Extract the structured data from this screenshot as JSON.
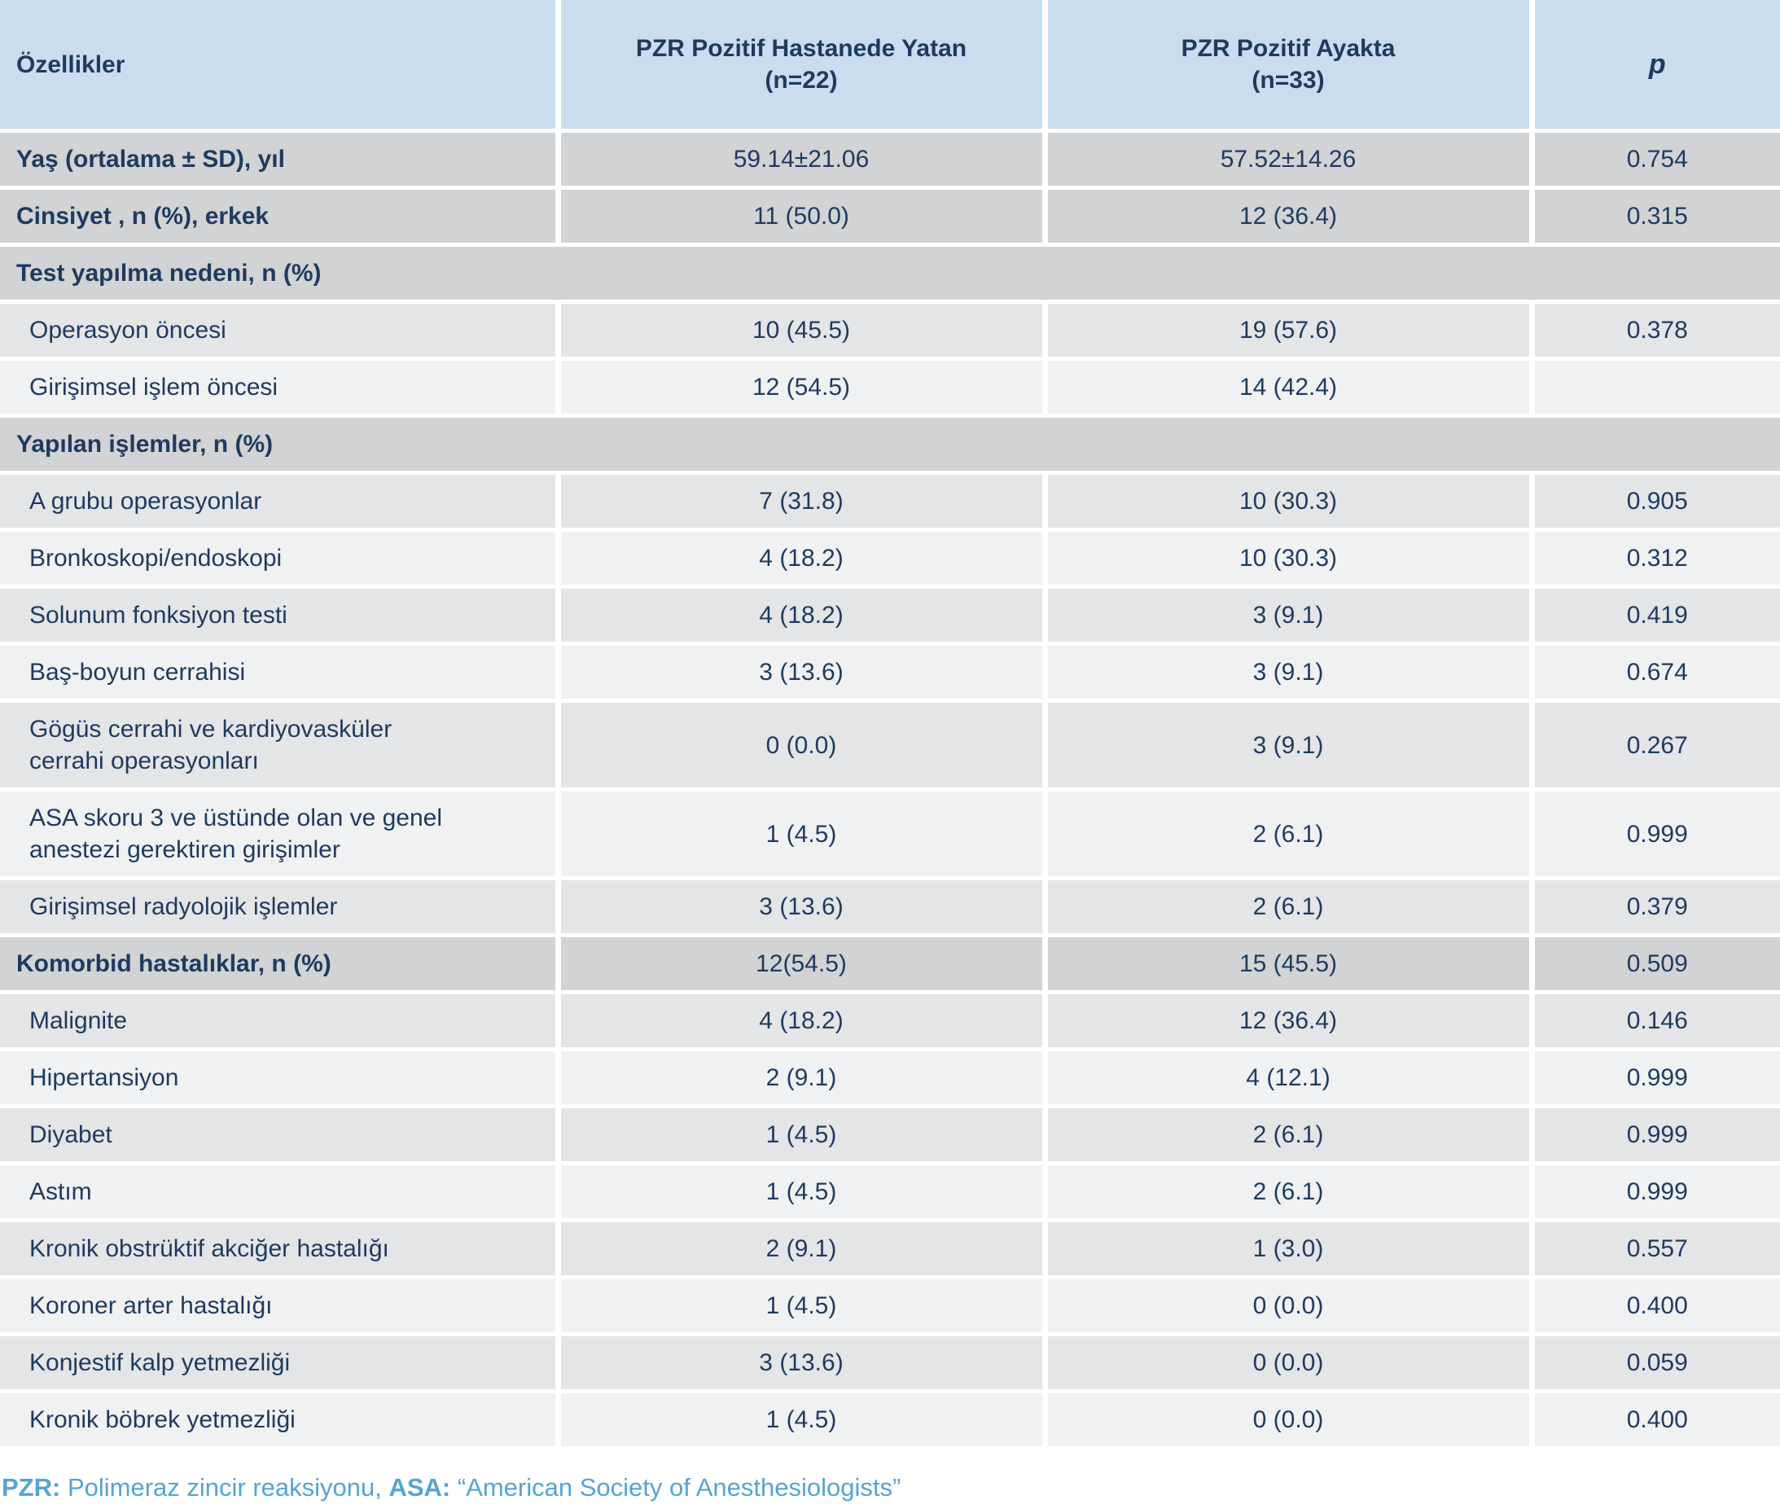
{
  "colors": {
    "header_bg": "#c9ddee",
    "group_row_bg": "#d2d3d4",
    "sub_row_dark_bg": "#e4e5e7",
    "sub_row_light_bg": "#f0f1f2",
    "text": "#1e3a5f",
    "footnote_text": "#54a5d0",
    "divider": "#ffffff"
  },
  "table": {
    "headers": [
      {
        "line1": "Özellikler",
        "line2": ""
      },
      {
        "line1": "PZR Pozitif Hastanede Yatan",
        "line2": "(n=22)"
      },
      {
        "line1": "PZR Pozitif Ayakta",
        "line2": "(n=33)"
      },
      {
        "line1": "p",
        "line2": ""
      }
    ],
    "rows": [
      {
        "style": "group",
        "shade": "",
        "label": "Yaş (ortalama ± SD), yıl",
        "inpatient": "59.14±21.06",
        "outpatient": "57.52±14.26",
        "p": "0.754"
      },
      {
        "style": "group",
        "shade": "",
        "label": "Cinsiyet , n (%), erkek",
        "inpatient": "11 (50.0)",
        "outpatient": "12 (36.4)",
        "p": "0.315"
      },
      {
        "style": "section",
        "shade": "",
        "label": "Test yapılma nedeni, n (%)",
        "inpatient": "",
        "outpatient": "",
        "p": ""
      },
      {
        "style": "item",
        "shade": "a",
        "label": "Operasyon öncesi",
        "inpatient": "10 (45.5)",
        "outpatient": "19 (57.6)",
        "p": "0.378"
      },
      {
        "style": "item",
        "shade": "b",
        "label": "Girişimsel işlem öncesi",
        "inpatient": "12 (54.5)",
        "outpatient": "14 (42.4)",
        "p": ""
      },
      {
        "style": "section",
        "shade": "",
        "label": "Yapılan işlemler, n (%)",
        "inpatient": "",
        "outpatient": "",
        "p": ""
      },
      {
        "style": "item",
        "shade": "a",
        "label": "A grubu operasyonlar",
        "inpatient": "7 (31.8)",
        "outpatient": "10 (30.3)",
        "p": "0.905"
      },
      {
        "style": "item",
        "shade": "b",
        "label": "Bronkoskopi/endoskopi",
        "inpatient": "4 (18.2)",
        "outpatient": "10 (30.3)",
        "p": "0.312"
      },
      {
        "style": "item",
        "shade": "a",
        "label": "Solunum fonksiyon testi",
        "inpatient": "4 (18.2)",
        "outpatient": "3 (9.1)",
        "p": "0.419"
      },
      {
        "style": "item",
        "shade": "b",
        "label": "Baş-boyun cerrahisi",
        "inpatient": "3 (13.6)",
        "outpatient": "3 (9.1)",
        "p": "0.674"
      },
      {
        "style": "item",
        "shade": "a",
        "label": "Gögüs cerrahi ve kardiyovasküler\ncerrahi operasyonları",
        "inpatient": "0 (0.0)",
        "outpatient": "3 (9.1)",
        "p": "0.267"
      },
      {
        "style": "item",
        "shade": "b",
        "label": "ASA skoru 3 ve üstünde olan ve genel\nanestezi gerektiren girişimler",
        "inpatient": "1 (4.5)",
        "outpatient": "2 (6.1)",
        "p": "0.999"
      },
      {
        "style": "item",
        "shade": "a",
        "label": "Girişimsel radyolojik işlemler",
        "inpatient": "3 (13.6)",
        "outpatient": "2 (6.1)",
        "p": "0.379"
      },
      {
        "style": "group",
        "shade": "",
        "label": "Komorbid hastalıklar, n (%)",
        "inpatient": "12(54.5)",
        "outpatient": "15 (45.5)",
        "p": "0.509"
      },
      {
        "style": "item",
        "shade": "a",
        "label": "Malignite",
        "inpatient": "4 (18.2)",
        "outpatient": "12 (36.4)",
        "p": "0.146"
      },
      {
        "style": "item",
        "shade": "b",
        "label": "Hipertansiyon",
        "inpatient": "2 (9.1)",
        "outpatient": "4 (12.1)",
        "p": "0.999"
      },
      {
        "style": "item",
        "shade": "a",
        "label": "Diyabet",
        "inpatient": "1 (4.5)",
        "outpatient": "2 (6.1)",
        "p": "0.999"
      },
      {
        "style": "item",
        "shade": "b",
        "label": "Astım",
        "inpatient": "1 (4.5)",
        "outpatient": "2 (6.1)",
        "p": "0.999"
      },
      {
        "style": "item",
        "shade": "a",
        "label": "Kronik obstrüktif akciğer hastalığı",
        "inpatient": "2 (9.1)",
        "outpatient": "1 (3.0)",
        "p": "0.557"
      },
      {
        "style": "item",
        "shade": "b",
        "label": "Koroner arter hastalığı",
        "inpatient": "1 (4.5)",
        "outpatient": "0 (0.0)",
        "p": "0.400"
      },
      {
        "style": "item",
        "shade": "a",
        "label": "Konjestif kalp yetmezliği",
        "inpatient": "3 (13.6)",
        "outpatient": "0 (0.0)",
        "p": "0.059"
      },
      {
        "style": "item",
        "shade": "b",
        "label": "Kronik böbrek yetmezliği",
        "inpatient": "1 (4.5)",
        "outpatient": "0 (0.0)",
        "p": "0.400"
      }
    ]
  },
  "footnote": {
    "parts": [
      {
        "text": "PZR:",
        "bold": true
      },
      {
        "text": " Polimeraz zincir reaksiyonu, ",
        "bold": false
      },
      {
        "text": "ASA:",
        "bold": true
      },
      {
        "text": " “American Society of Anesthesiologists”",
        "bold": false
      }
    ]
  }
}
